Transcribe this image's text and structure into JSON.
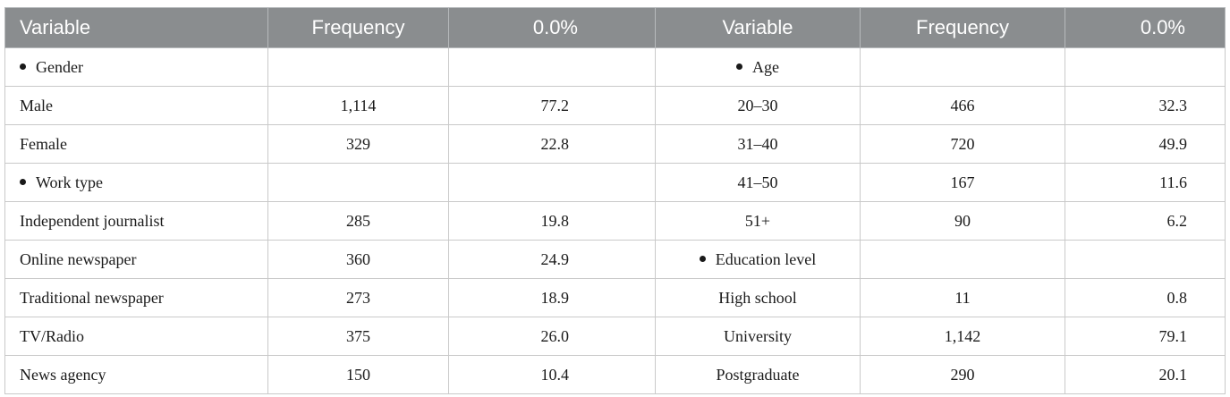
{
  "headers": [
    "Variable",
    "Frequency",
    "0.0%",
    "Variable",
    "Frequency",
    "0.0%"
  ],
  "rows": [
    {
      "l_var": "Gender",
      "l_bullet": true,
      "l_freq": "",
      "l_pct": "",
      "r_var": "Age",
      "r_bullet": true,
      "r_freq": "",
      "r_pct": ""
    },
    {
      "l_var": "Male",
      "l_freq": "1,114",
      "l_pct": "77.2",
      "r_var": "20–30",
      "r_freq": "466",
      "r_pct": "32.3"
    },
    {
      "l_var": "Female",
      "l_freq": "329",
      "l_pct": "22.8",
      "r_var": "31–40",
      "r_freq": "720",
      "r_pct": "49.9"
    },
    {
      "l_var": "Work type",
      "l_bullet": true,
      "l_freq": "",
      "l_pct": "",
      "r_var": "41–50",
      "r_freq": "167",
      "r_pct": "11.6"
    },
    {
      "l_var": "Independent journalist",
      "l_freq": "285",
      "l_pct": "19.8",
      "r_var": "51+",
      "r_freq": "90",
      "r_pct": "6.2"
    },
    {
      "l_var": "Online newspaper",
      "l_freq": "360",
      "l_pct": "24.9",
      "r_var": "Education level",
      "r_bullet": true,
      "r_freq": "",
      "r_pct": ""
    },
    {
      "l_var": "Traditional newspaper",
      "l_freq": "273",
      "l_pct": "18.9",
      "r_var": "High school",
      "r_freq": "11",
      "r_pct": "0.8"
    },
    {
      "l_var": "TV/Radio",
      "l_freq": "375",
      "l_pct": "26.0",
      "r_var": "University",
      "r_freq": "1,142",
      "r_pct": "79.1"
    },
    {
      "l_var": "News agency",
      "l_freq": "150",
      "l_pct": "10.4",
      "r_var": "Postgraduate",
      "r_freq": "290",
      "r_pct": "20.1"
    }
  ]
}
